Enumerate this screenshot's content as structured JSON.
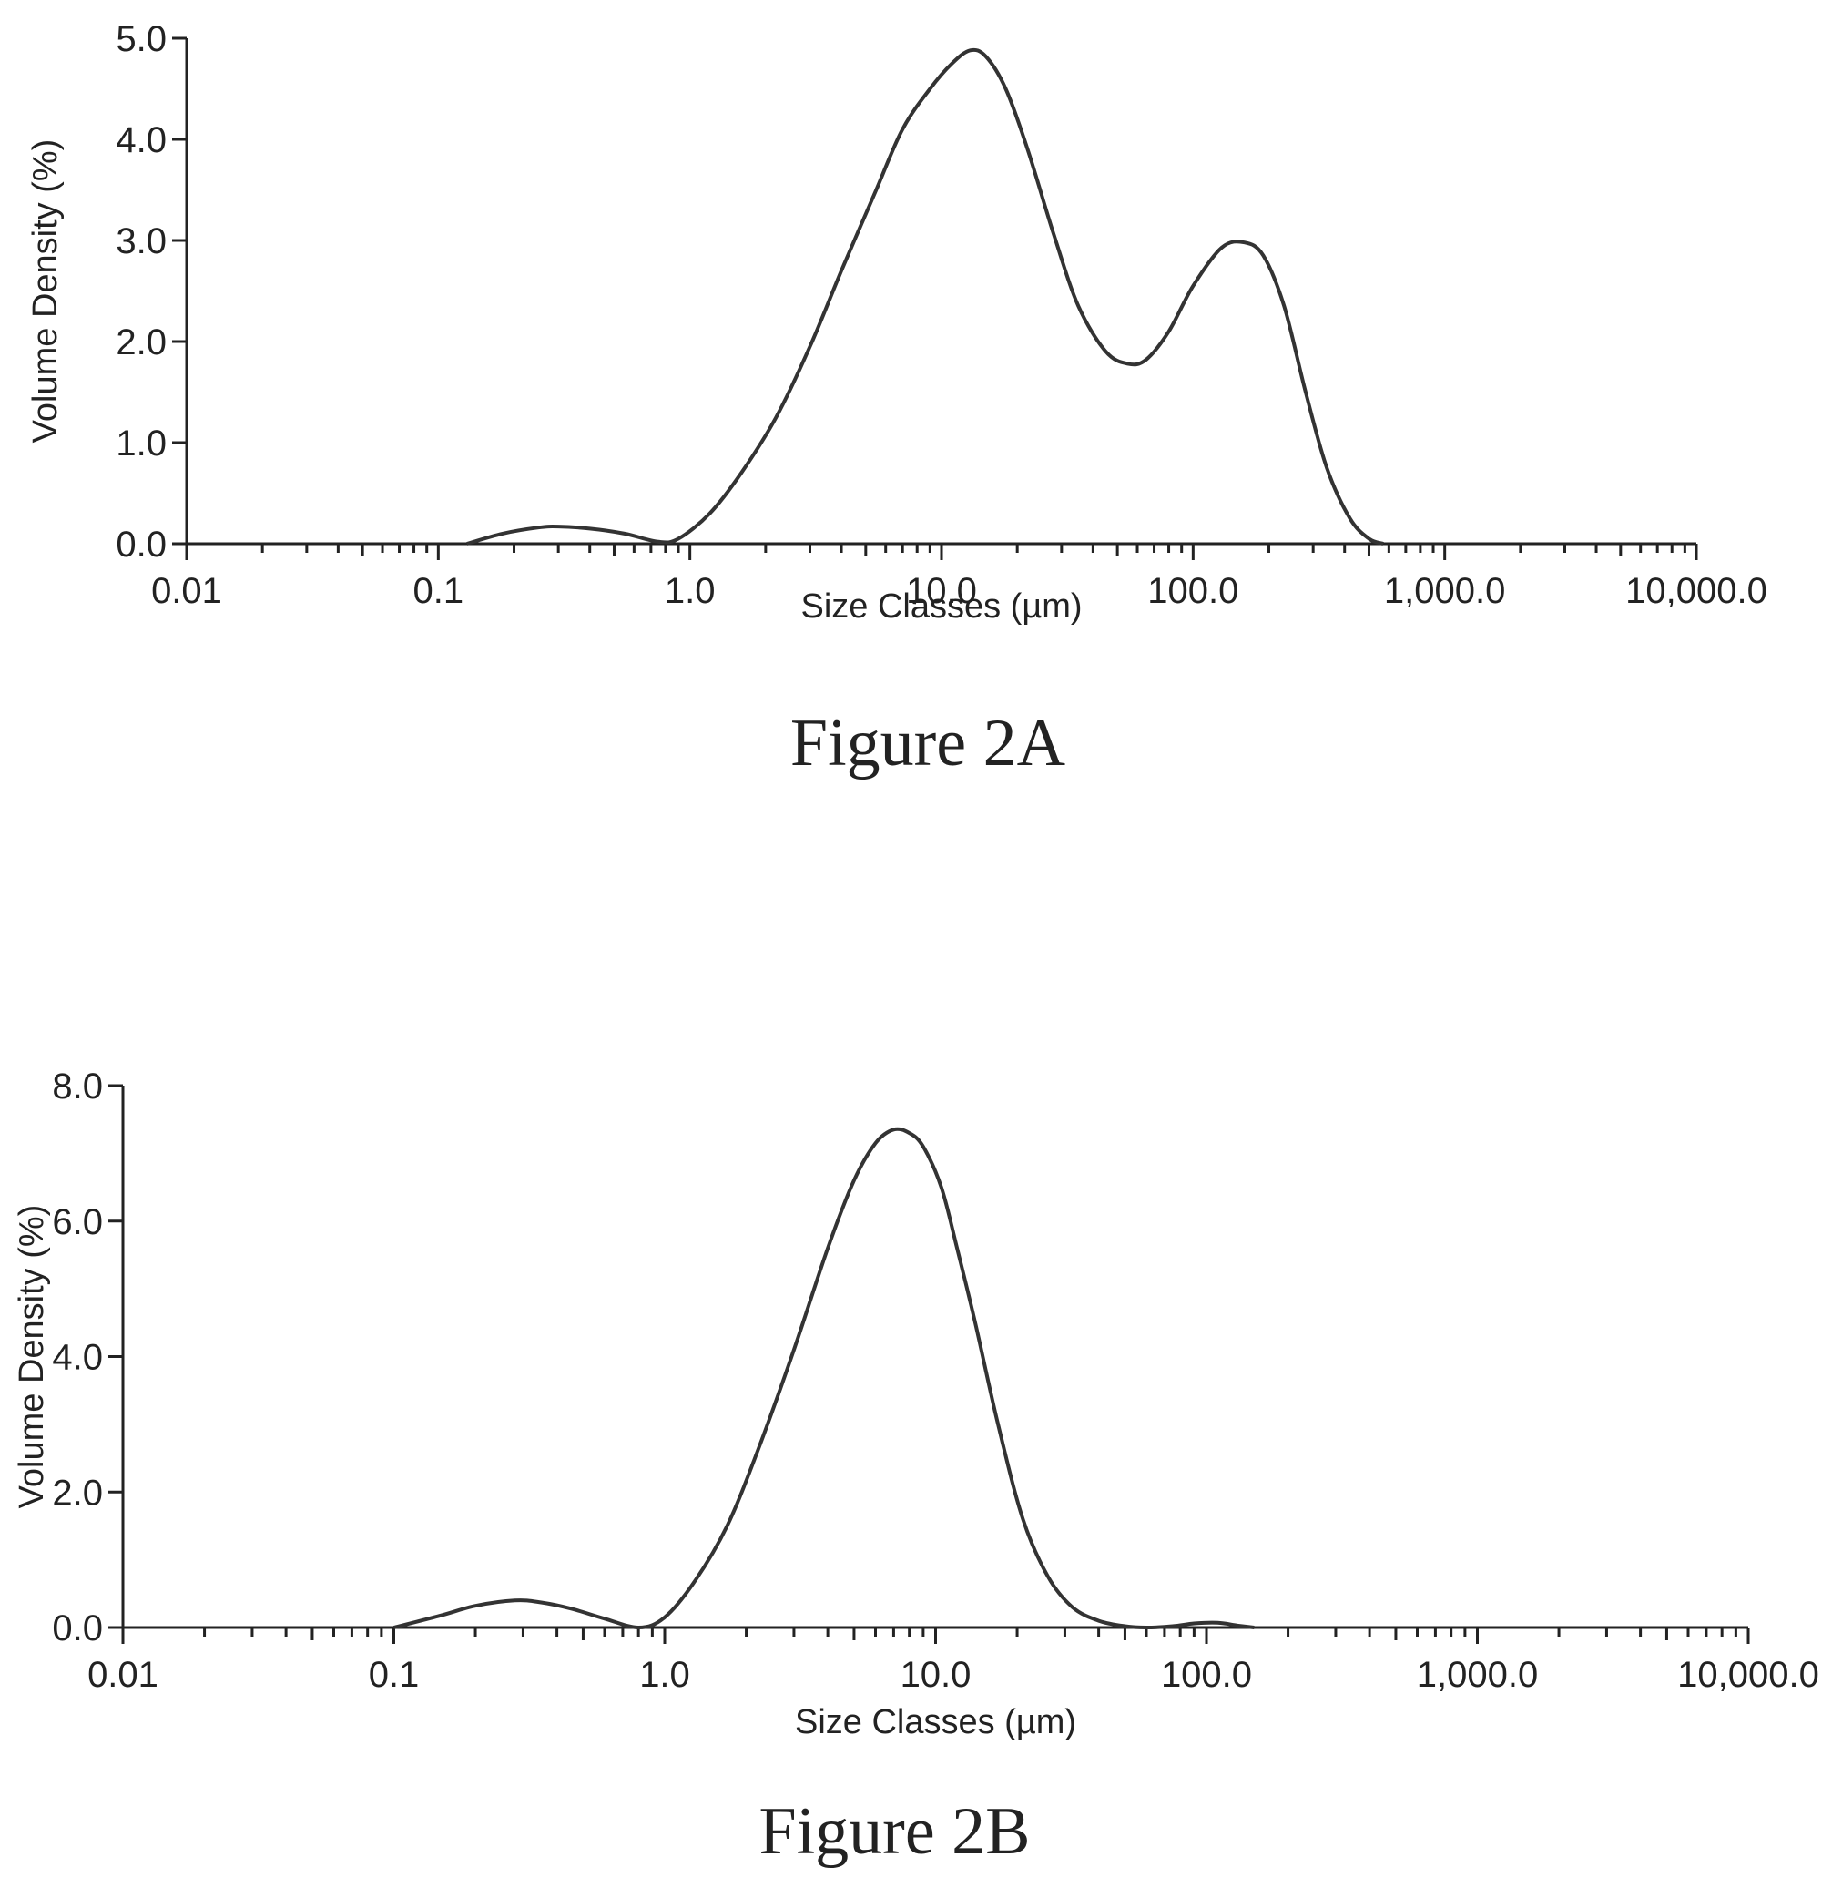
{
  "chart_data": [
    {
      "type": "line",
      "caption": "Figure 2A",
      "xlabel": "Size Classes (µm)",
      "ylabel": "Volume Density (%)",
      "xscale": "log",
      "xlim": [
        0.01,
        10000
      ],
      "ylim": [
        0,
        5
      ],
      "xticks": [
        {
          "value": 0.01,
          "label": "0.01"
        },
        {
          "value": 0.1,
          "label": "0.1"
        },
        {
          "value": 1,
          "label": "1.0"
        },
        {
          "value": 10,
          "label": "10.0"
        },
        {
          "value": 100,
          "label": "100.0"
        },
        {
          "value": 1000,
          "label": "1,000.0"
        },
        {
          "value": 10000,
          "label": "10,000.0"
        }
      ],
      "yticks": [
        {
          "value": 0,
          "label": "0.0"
        },
        {
          "value": 1,
          "label": "1.0"
        },
        {
          "value": 2,
          "label": "2.0"
        },
        {
          "value": 3,
          "label": "3.0"
        },
        {
          "value": 4,
          "label": "4.0"
        },
        {
          "value": 5,
          "label": "5.0"
        }
      ],
      "grid": false,
      "series": [
        {
          "x": [
            0.13,
            0.18,
            0.25,
            0.3,
            0.4,
            0.55,
            0.75,
            0.9,
            1.2,
            1.6,
            2.2,
            3,
            4,
            5.5,
            7,
            9,
            11,
            13,
            15,
            18,
            22,
            28,
            35,
            45,
            55,
            65,
            80,
            100,
            130,
            160,
            190,
            230,
            280,
            340,
            420,
            500,
            570
          ],
          "y": [
            0,
            0.1,
            0.16,
            0.17,
            0.15,
            0.1,
            0.02,
            0.05,
            0.3,
            0.7,
            1.25,
            1.95,
            2.7,
            3.5,
            4.1,
            4.5,
            4.75,
            4.88,
            4.82,
            4.5,
            3.9,
            3.05,
            2.35,
            1.9,
            1.78,
            1.82,
            2.1,
            2.55,
            2.93,
            2.98,
            2.85,
            2.35,
            1.5,
            0.75,
            0.25,
            0.05,
            0
          ]
        }
      ]
    },
    {
      "type": "line",
      "caption": "Figure 2B",
      "xlabel": "Size Classes (µm)",
      "ylabel": "Volume Density (%)",
      "xscale": "log",
      "xlim": [
        0.01,
        10000
      ],
      "ylim": [
        0,
        8
      ],
      "xticks": [
        {
          "value": 0.01,
          "label": "0.01"
        },
        {
          "value": 0.1,
          "label": "0.1"
        },
        {
          "value": 1,
          "label": "1.0"
        },
        {
          "value": 10,
          "label": "10.0"
        },
        {
          "value": 100,
          "label": "100.0"
        },
        {
          "value": 1000,
          "label": "1,000.0"
        },
        {
          "value": 10000,
          "label": "10,000.0"
        }
      ],
      "yticks": [
        {
          "value": 0,
          "label": "0.0"
        },
        {
          "value": 2,
          "label": "2.0"
        },
        {
          "value": 4,
          "label": "4.0"
        },
        {
          "value": 6,
          "label": "6.0"
        },
        {
          "value": 8,
          "label": "8.0"
        }
      ],
      "grid": false,
      "series": [
        {
          "x": [
            0.1,
            0.15,
            0.2,
            0.28,
            0.35,
            0.45,
            0.6,
            0.8,
            1,
            1.3,
            1.7,
            2.2,
            3,
            4,
            5,
            6,
            7,
            8,
            9,
            10.5,
            12,
            14,
            17,
            21,
            26,
            32,
            40,
            50,
            60,
            75,
            90,
            110,
            130,
            150
          ],
          "y": [
            0,
            0.18,
            0.32,
            0.4,
            0.37,
            0.28,
            0.13,
            0,
            0.15,
            0.7,
            1.5,
            2.6,
            4.1,
            5.6,
            6.6,
            7.15,
            7.35,
            7.3,
            7.1,
            6.5,
            5.6,
            4.5,
            3,
            1.6,
            0.75,
            0.3,
            0.1,
            0.02,
            0,
            0.02,
            0.06,
            0.07,
            0.03,
            0
          ]
        }
      ]
    }
  ]
}
